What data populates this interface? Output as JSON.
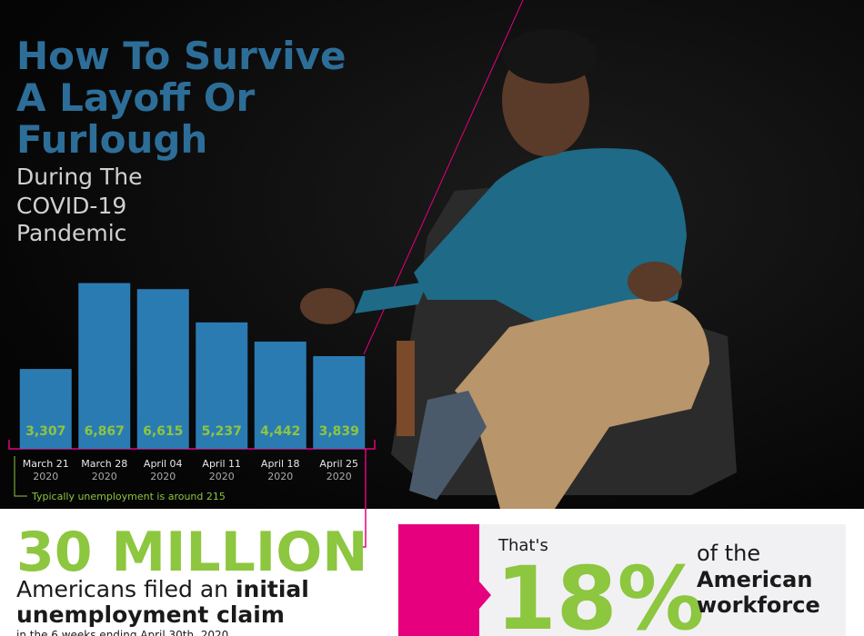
{
  "chart_data": {
    "type": "bar",
    "categories": [
      "March 21 2020",
      "March 28 2020",
      "April 04 2020",
      "April 11 2020",
      "April 18 2020",
      "April 25 2020"
    ],
    "values": [
      3307,
      6867,
      6615,
      5237,
      4442,
      3839
    ],
    "value_labels": [
      "3,307",
      "6,867",
      "6,615",
      "5,237",
      "4,442",
      "3,839"
    ],
    "color": "#2b7bb3",
    "label_color": "#8dc63f",
    "ylim": [
      0,
      7000
    ],
    "annotation": "Typically unemployment is around 215"
  },
  "header": {
    "title": [
      "How To Survive",
      "A Layoff Or",
      "Furlough"
    ],
    "subtitle": [
      "During The",
      "COVID-19",
      "Pandemic"
    ]
  },
  "stat": {
    "headline": "30 MILLION",
    "line1": "Americans filed an ",
    "line1_bold": "initial",
    "line2": "unemployment claim",
    "note": "in the 6 weeks ending April 30th, 2020"
  },
  "share": {
    "lead": "That's",
    "value": "18%",
    "of": "of the",
    "bold1": "American",
    "bold2": "workforce"
  }
}
